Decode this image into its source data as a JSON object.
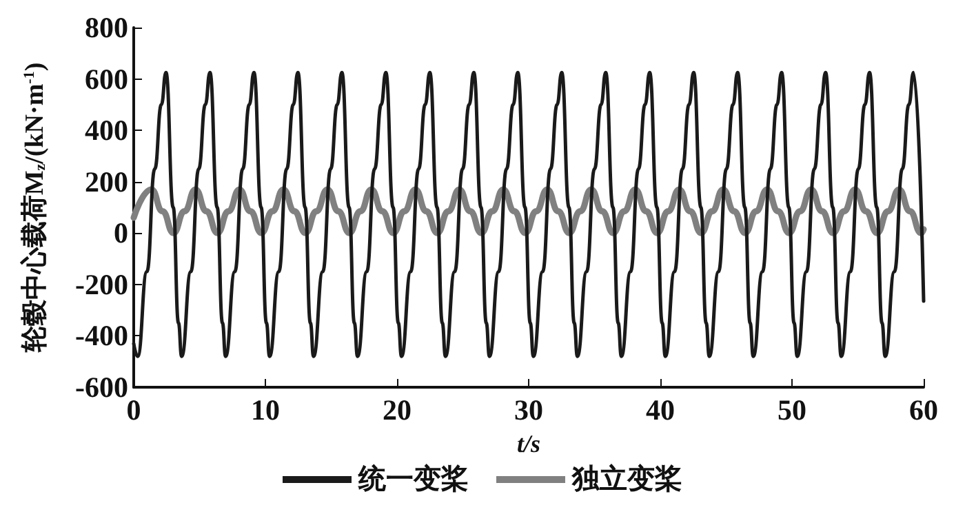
{
  "chart_data": {
    "type": "line",
    "xlabel": "t/s",
    "ylabel": "轮毂中心载荷M$_{z}$/(kN·m$^{-1}$)",
    "xlim": [
      0,
      60
    ],
    "xticks": [
      0,
      10,
      20,
      30,
      40,
      50,
      60
    ],
    "ylim": [
      -600,
      800
    ],
    "yticks": [
      -600,
      -400,
      -200,
      0,
      200,
      400,
      600,
      800
    ],
    "grid": false,
    "legend": "bottom",
    "marker": "none",
    "line_style": "solid",
    "series": [
      {
        "name": "统一变桨",
        "color": "#1a1a1a",
        "x": [
          0,
          0.3,
          1.0,
          1.6,
          2.1,
          2.45,
          3.0,
          3.4,
          3.64,
          4.34,
          4.94,
          5.44,
          5.79,
          6.34,
          6.74,
          6.98,
          7.68,
          8.28,
          8.78,
          9.13,
          9.68,
          10.08,
          10.32,
          11.02,
          11.62,
          12.12,
          12.47,
          13.02,
          13.42,
          13.66,
          14.36,
          14.96,
          15.46,
          15.81,
          16.36,
          16.76,
          17.0,
          17.7,
          18.3,
          18.8,
          19.15,
          19.7,
          20.1,
          20.34,
          21.04,
          21.64,
          22.14,
          22.49,
          23.04,
          23.44,
          23.68,
          24.38,
          24.98,
          25.48,
          25.83,
          26.38,
          26.78,
          27.02,
          27.72,
          28.32,
          28.82,
          29.17,
          29.72,
          30.12,
          30.36,
          31.06,
          31.66,
          32.16,
          32.51,
          33.06,
          33.46,
          33.7,
          34.4,
          35.0,
          35.5,
          35.85,
          36.4,
          36.8,
          37.04,
          37.74,
          38.34,
          38.84,
          39.19,
          39.74,
          40.14,
          40.38,
          41.08,
          41.68,
          42.18,
          42.53,
          43.08,
          43.48,
          43.72,
          44.42,
          45.02,
          45.52,
          45.87,
          46.42,
          46.82,
          47.06,
          47.76,
          48.36,
          48.86,
          49.21,
          49.76,
          50.16,
          50.4,
          51.1,
          51.7,
          52.2,
          52.55,
          53.1,
          53.5,
          53.74,
          54.44,
          55.04,
          55.54,
          55.89,
          56.44,
          56.84,
          57.08,
          57.78,
          58.38,
          58.88,
          59.23,
          60
        ],
        "values": [
          -430,
          -480,
          -150,
          250,
          500,
          625,
          100,
          -350,
          -480,
          -150,
          250,
          500,
          625,
          100,
          -350,
          -480,
          -150,
          250,
          500,
          625,
          100,
          -350,
          -480,
          -150,
          250,
          500,
          625,
          100,
          -350,
          -480,
          -150,
          250,
          500,
          625,
          100,
          -350,
          -480,
          -150,
          250,
          500,
          625,
          100,
          -350,
          -480,
          -150,
          250,
          500,
          625,
          100,
          -350,
          -480,
          -150,
          250,
          500,
          625,
          100,
          -350,
          -480,
          -150,
          250,
          500,
          625,
          100,
          -350,
          -480,
          -150,
          250,
          500,
          625,
          100,
          -350,
          -480,
          -150,
          250,
          500,
          625,
          100,
          -350,
          -480,
          -150,
          250,
          500,
          625,
          100,
          -350,
          -480,
          -150,
          250,
          500,
          625,
          100,
          -350,
          -480,
          -150,
          250,
          500,
          625,
          100,
          -350,
          -480,
          -150,
          250,
          500,
          625,
          100,
          -350,
          -480,
          -150,
          250,
          500,
          625,
          100,
          -350,
          -480,
          -150,
          250,
          500,
          625,
          100,
          -350,
          -480,
          -150,
          250,
          500,
          625,
          -265
        ]
      },
      {
        "name": "独立变桨",
        "color": "#808080",
        "x": [
          0,
          1.35,
          2.185,
          3.02,
          3.855,
          4.69,
          5.525,
          6.36,
          7.195,
          8.03,
          8.865,
          9.7,
          10.535,
          11.37,
          12.205,
          13.04,
          13.875,
          14.71,
          15.545,
          16.38,
          17.215,
          18.05,
          18.885,
          19.72,
          20.555,
          21.39,
          22.225,
          23.06,
          23.895,
          24.73,
          25.565,
          26.4,
          27.235,
          28.07,
          28.905,
          29.74,
          30.575,
          31.41,
          32.245,
          33.08,
          33.915,
          34.75,
          35.585,
          36.42,
          37.255,
          38.09,
          38.925,
          39.76,
          40.595,
          41.43,
          42.265,
          43.1,
          43.935,
          44.77,
          45.605,
          46.44,
          47.275,
          48.11,
          48.945,
          49.78,
          50.615,
          51.45,
          52.285,
          53.12,
          53.955,
          54.79,
          55.625,
          56.46,
          57.295,
          58.13,
          58.965,
          59.8,
          60
        ],
        "values": [
          60,
          170,
          85,
          0,
          85,
          170,
          85,
          0,
          85,
          170,
          85,
          0,
          85,
          170,
          85,
          0,
          85,
          170,
          85,
          0,
          85,
          170,
          85,
          0,
          85,
          170,
          85,
          0,
          85,
          170,
          85,
          0,
          85,
          170,
          85,
          0,
          85,
          170,
          85,
          0,
          85,
          170,
          85,
          0,
          85,
          170,
          85,
          0,
          85,
          170,
          85,
          0,
          85,
          170,
          85,
          0,
          85,
          170,
          85,
          0,
          85,
          170,
          85,
          0,
          85,
          170,
          85,
          0,
          85,
          170,
          85,
          0,
          15
        ]
      }
    ]
  }
}
